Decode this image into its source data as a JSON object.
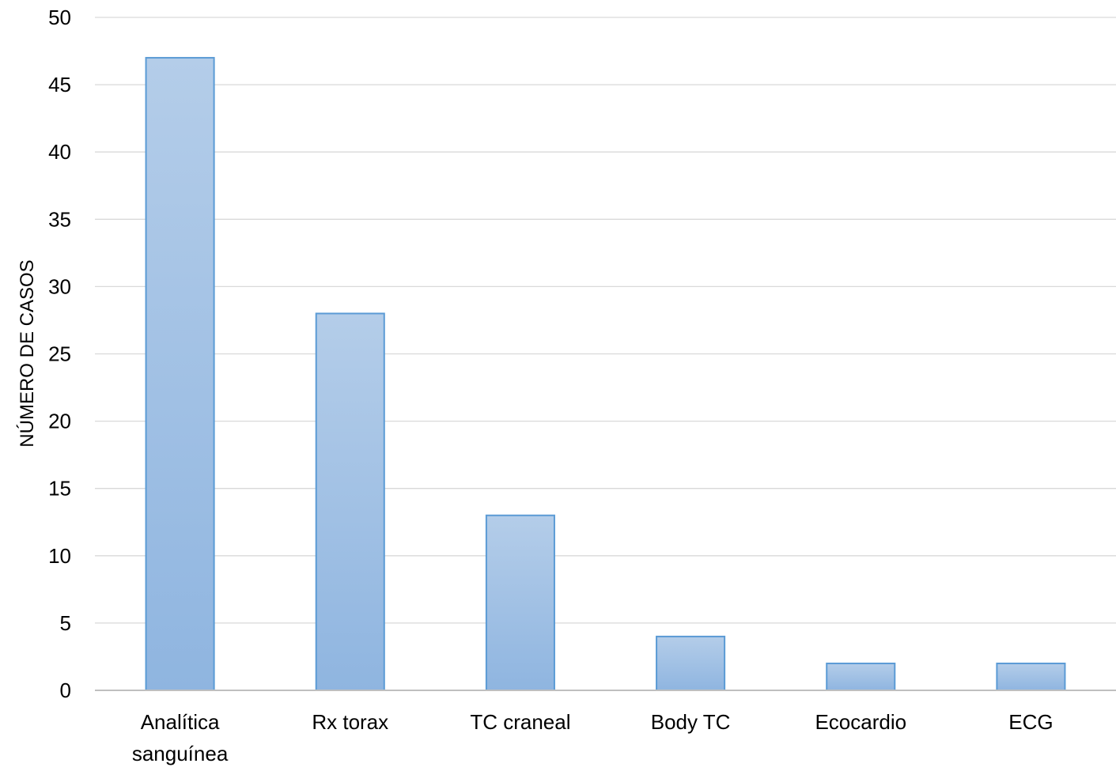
{
  "chart_data": {
    "type": "bar",
    "title": "",
    "xlabel": "",
    "ylabel": "NÚMERO DE CASOS",
    "categories": [
      [
        "Analítica",
        "sanguínea"
      ],
      [
        "Rx torax"
      ],
      [
        "TC craneal"
      ],
      [
        "Body TC"
      ],
      [
        "Ecocardio"
      ],
      [
        "ECG"
      ]
    ],
    "values": [
      47,
      28,
      13,
      4,
      2,
      2
    ],
    "ylim": [
      0,
      50
    ],
    "yticks": [
      0,
      5,
      10,
      15,
      20,
      25,
      30,
      35,
      40,
      45,
      50
    ],
    "grid": true,
    "legend": "none",
    "colors": {
      "bar_top": "#b4cde9",
      "bar_bottom": "#8fb5e0",
      "bar_border": "#5b9bd5",
      "grid": "#d9d9d9",
      "axis": "#bfbfbf"
    }
  }
}
